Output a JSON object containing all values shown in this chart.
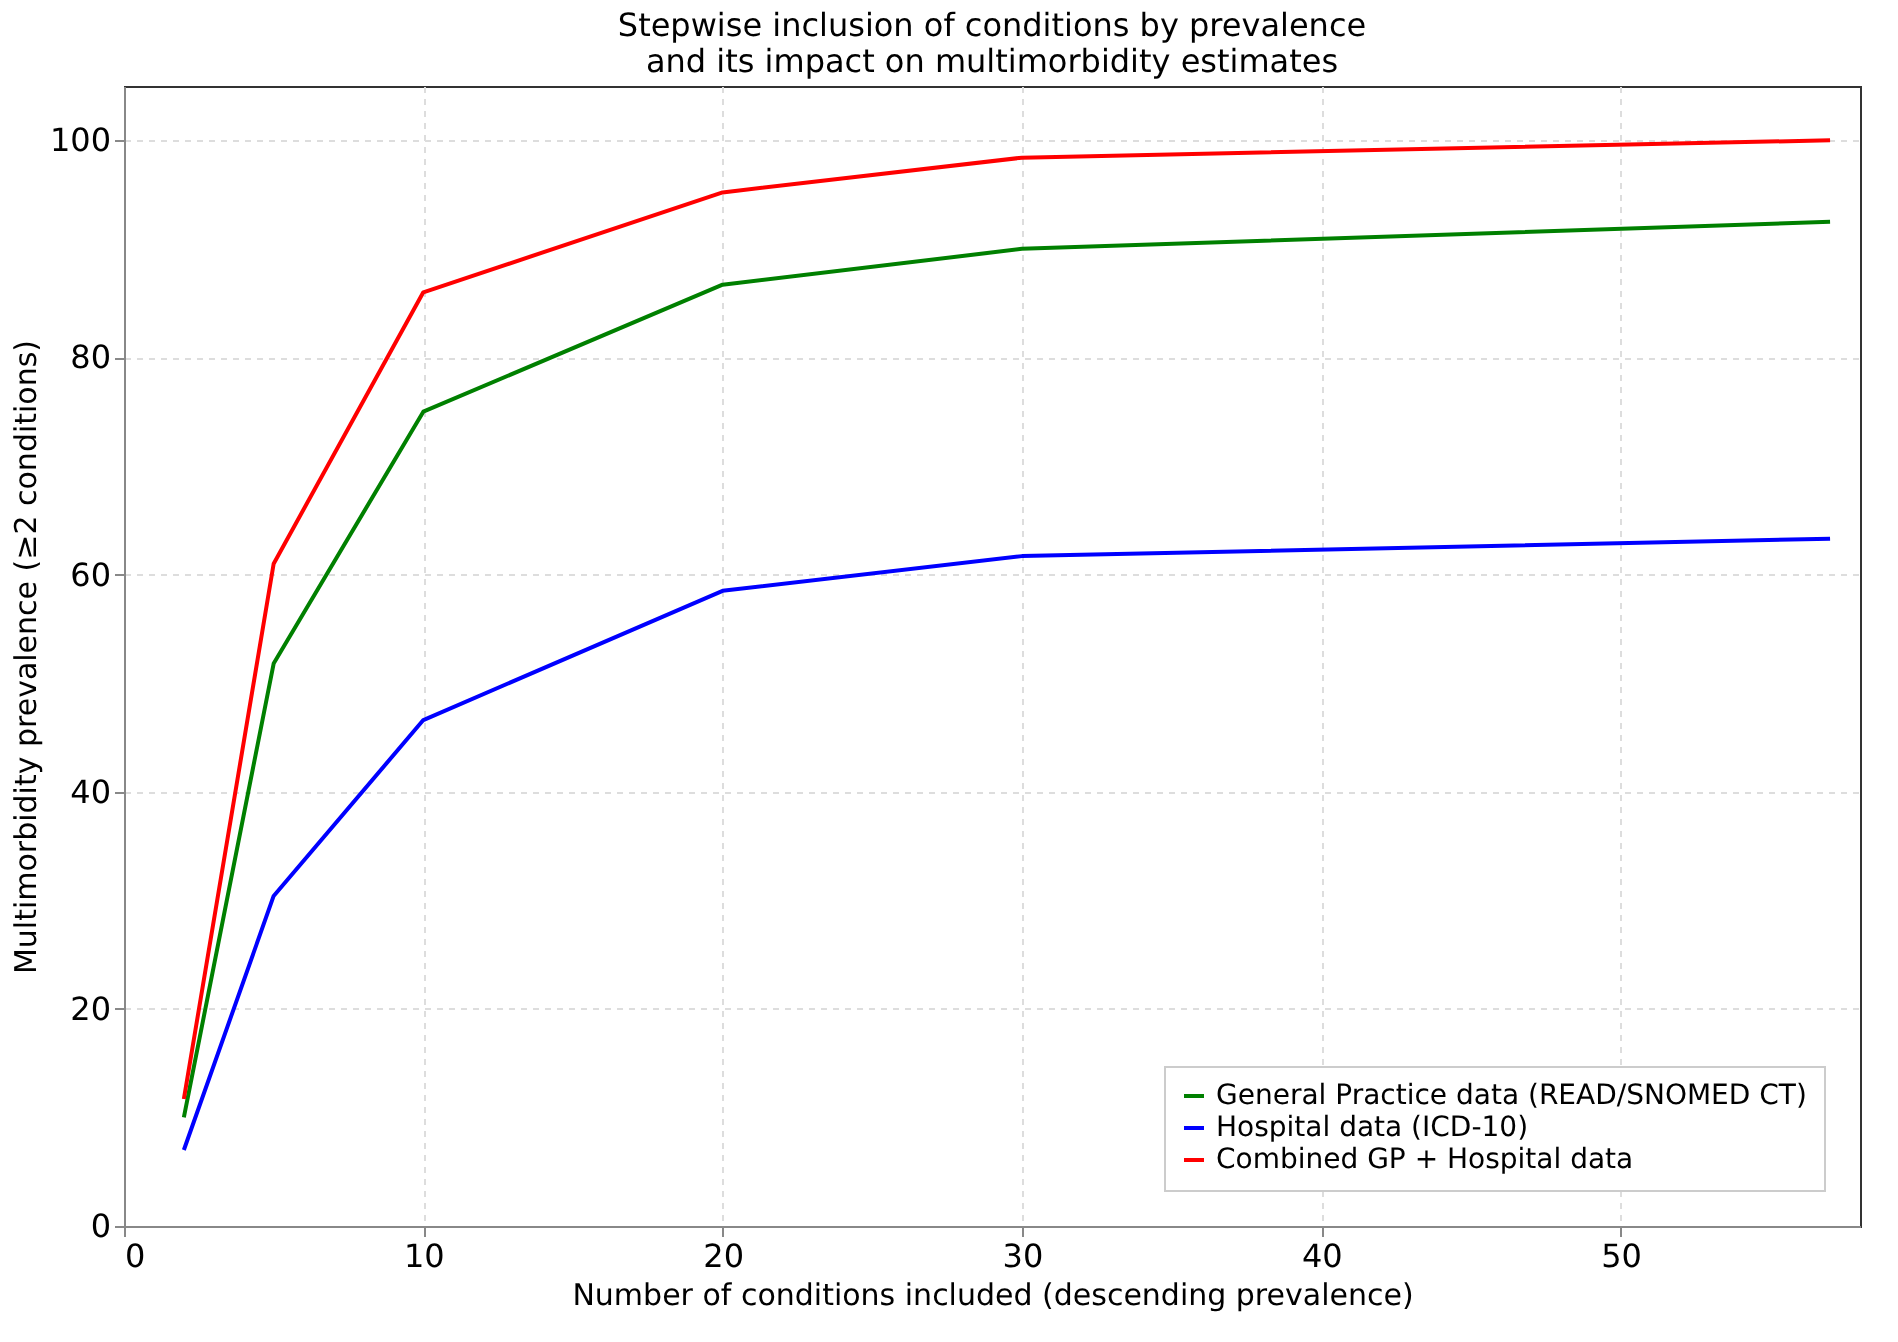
{
  "chart_data": {
    "type": "line",
    "title": [
      "Stepwise inclusion of conditions by prevalence",
      "and its impact on multimorbidity estimates"
    ],
    "xlabel": "Number of conditions included (descending prevalence)",
    "ylabel": "Multimorbidity prevalence (≥2 conditions)",
    "x": [
      2,
      5,
      10,
      20,
      30,
      57
    ],
    "series": [
      {
        "name": "General Practice data (READ/SNOMED CT)",
        "color": "#008000",
        "values": [
          10,
          51.8,
          75,
          86.7,
          90,
          92.5
        ]
      },
      {
        "name": "Hospital data (ICD-10)",
        "color": "#0000ff",
        "values": [
          7,
          30.4,
          46.6,
          58.5,
          61.7,
          63.3
        ]
      },
      {
        "name": "Combined GP + Hospital data",
        "color": "#ff0000",
        "values": [
          11.7,
          61,
          86,
          95.2,
          98.4,
          100
        ]
      }
    ],
    "xlim": [
      0,
      58
    ],
    "xticks": [
      0,
      10,
      20,
      30,
      40,
      50
    ],
    "ylim": [
      0,
      105
    ],
    "yticks": [
      0,
      20,
      40,
      60,
      80,
      100
    ],
    "grid": true,
    "legend": "bottom right",
    "marker": "none",
    "line_style": "solid"
  }
}
